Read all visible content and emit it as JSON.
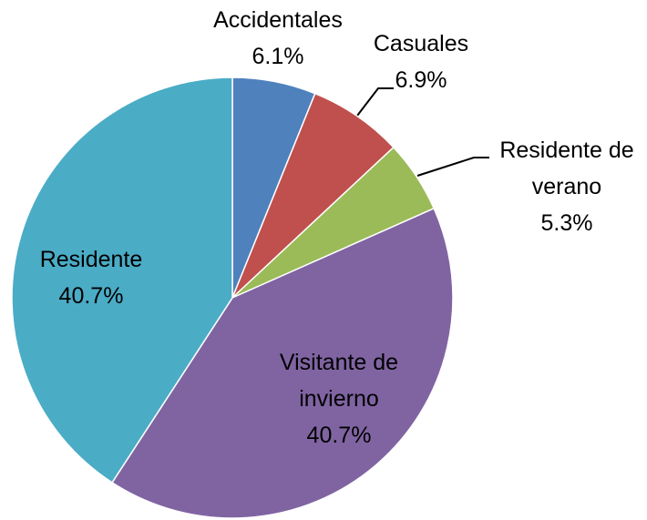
{
  "chart_data": {
    "type": "pie",
    "categories": [
      "Accidentales",
      "Casuales",
      "Residente de verano",
      "Visitante de invierno",
      "Residente"
    ],
    "values": [
      6.1,
      6.9,
      5.3,
      40.7,
      40.7
    ],
    "value_labels": [
      "6.1%",
      "6.9%",
      "5.3%",
      "40.7%",
      "40.7%"
    ],
    "colors": [
      "#4f81bd",
      "#c0504d",
      "#9bbb59",
      "#8064a2",
      "#4bacc6"
    ]
  }
}
